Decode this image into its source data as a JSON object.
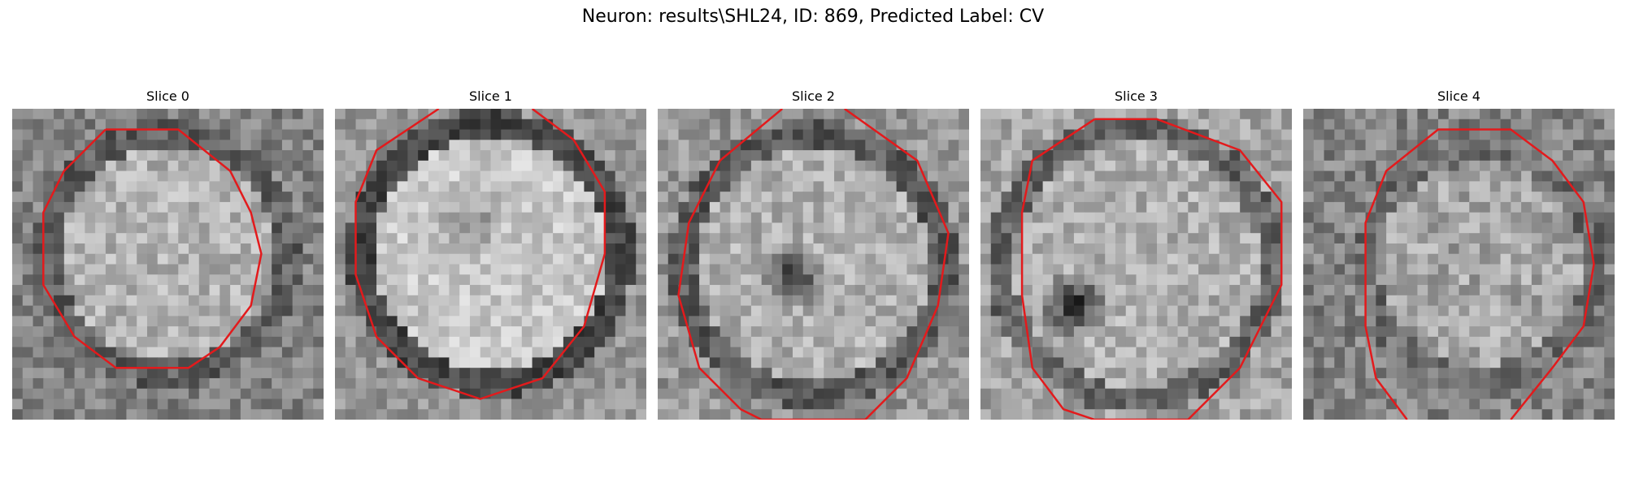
{
  "figure": {
    "title": "Neuron: results\\SHL24, ID: 869, Predicted Label: CV"
  },
  "contour_color": "#e31a1c",
  "panels": [
    {
      "title": "Slice 0",
      "dark_blob": false
    },
    {
      "title": "Slice 1",
      "dark_blob": true
    },
    {
      "title": "Slice 2",
      "dark_blob": true
    },
    {
      "title": "Slice 3",
      "dark_blob": true
    },
    {
      "title": "Slice 4",
      "dark_blob": false
    }
  ]
}
